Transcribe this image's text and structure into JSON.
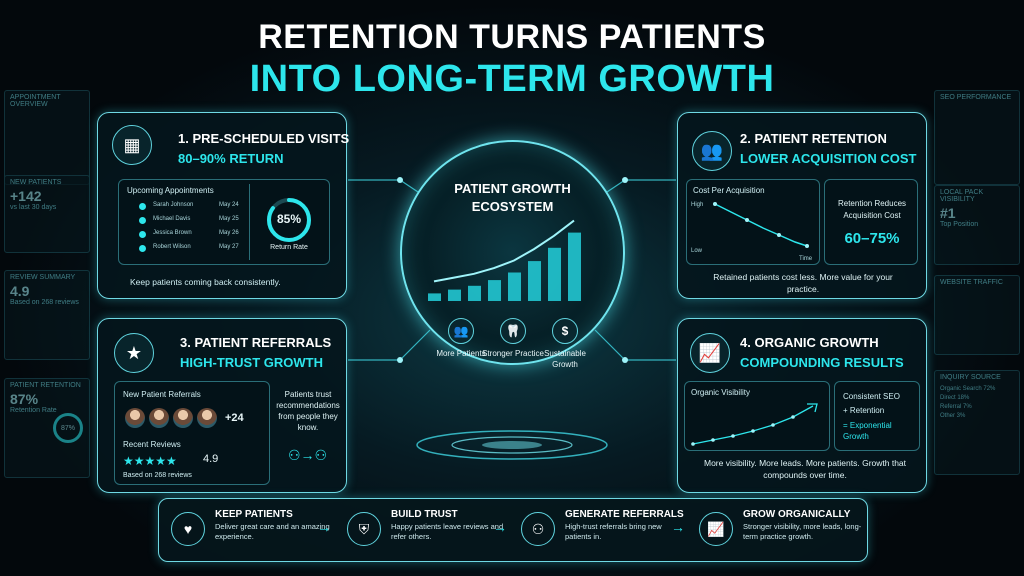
{
  "title": {
    "line1": "RETENTION TURNS PATIENTS",
    "line2": "INTO LONG-TERM GROWTH"
  },
  "side_left": {
    "appointment_overview": "APPOINTMENT OVERVIEW",
    "new_patients_label": "NEW PATIENTS",
    "new_patients_value": "+142",
    "new_patients_sub": "vs last 30 days",
    "review_summary_label": "REVIEW SUMMARY",
    "review_value": "4.9",
    "review_sub": "Based on 268 reviews",
    "retention_label": "PATIENT RETENTION",
    "retention_value": "87%",
    "retention_sub": "Retention Rate",
    "retention_ring": "87%"
  },
  "side_right": {
    "seo_label": "SEO PERFORMANCE",
    "local_label": "LOCAL PACK VISIBILITY",
    "local_value": "#1",
    "local_sub": "Top Position",
    "traffic_label": "WEBSITE TRAFFIC",
    "inquiry_label": "INQUIRY SOURCE",
    "inquiry_rows": [
      "Organic Search 72%",
      "Direct 18%",
      "Referral 7%",
      "Other 3%"
    ]
  },
  "card1": {
    "heading": "1. PRE-SCHEDULED VISITS",
    "subheading": "80–90% RETURN",
    "appointments_title": "Upcoming Appointments",
    "appointments": [
      {
        "name": "Sarah Johnson",
        "date": "May 24"
      },
      {
        "name": "Michael Davis",
        "date": "May 25"
      },
      {
        "name": "Jessica Brown",
        "date": "May 26"
      },
      {
        "name": "Robert Wilson",
        "date": "May 27"
      }
    ],
    "return_rate_value": "85%",
    "return_rate_fraction": 0.85,
    "return_rate_label": "Return Rate",
    "note": "Keep patients coming back consistently."
  },
  "card2": {
    "heading": "2. PATIENT RETENTION",
    "subheading": "LOWER ACQUISITION COST",
    "chart_title": "Cost Per Acquisition",
    "y_high": "High",
    "y_low": "Low",
    "x_label": "Time",
    "reduces_label": "Retention Reduces Acquisition Cost",
    "reduces_value": "60–75%",
    "note": "Retained patients cost less. More value for your practice."
  },
  "card3": {
    "heading": "3. PATIENT REFERRALS",
    "subheading": "HIGH-TRUST GROWTH",
    "referrals_title": "New Patient Referrals",
    "referrals_extra": "+24",
    "reviews_title": "Recent Reviews",
    "rating": "4.9",
    "rating_sub": "Based on 268 reviews",
    "note": "Patients trust recommendations from people they know."
  },
  "card4": {
    "heading": "4. ORGANIC GROWTH",
    "subheading": "COMPOUNDING RESULTS",
    "chart_title": "Organic Visibility",
    "formula_1": "Consistent SEO",
    "formula_2": "+ Retention",
    "formula_3": "= Exponential Growth",
    "note": "More visibility. More leads. More patients. Growth that compounds over time."
  },
  "center": {
    "title": "PATIENT GROWTH ECOSYSTEM",
    "bars": [
      0.08,
      0.12,
      0.16,
      0.22,
      0.3,
      0.42,
      0.56,
      0.72
    ],
    "items": [
      {
        "label": "More Patients",
        "icon": "people-icon"
      },
      {
        "label": "Stronger Practice",
        "icon": "tooth-icon"
      },
      {
        "label": "Sustainable Growth",
        "icon": "dollar-icon"
      }
    ]
  },
  "steps": [
    {
      "title": "KEEP PATIENTS",
      "desc": "Deliver great care and an amazing experience."
    },
    {
      "title": "BUILD TRUST",
      "desc": "Happy patients leave reviews and refer others."
    },
    {
      "title": "GENERATE REFERRALS",
      "desc": "High-trust referrals bring new patients in."
    },
    {
      "title": "GROW ORGANICALLY",
      "desc": "Stronger visibility, more leads, long-term practice growth."
    }
  ],
  "accent": "#2de6ec"
}
